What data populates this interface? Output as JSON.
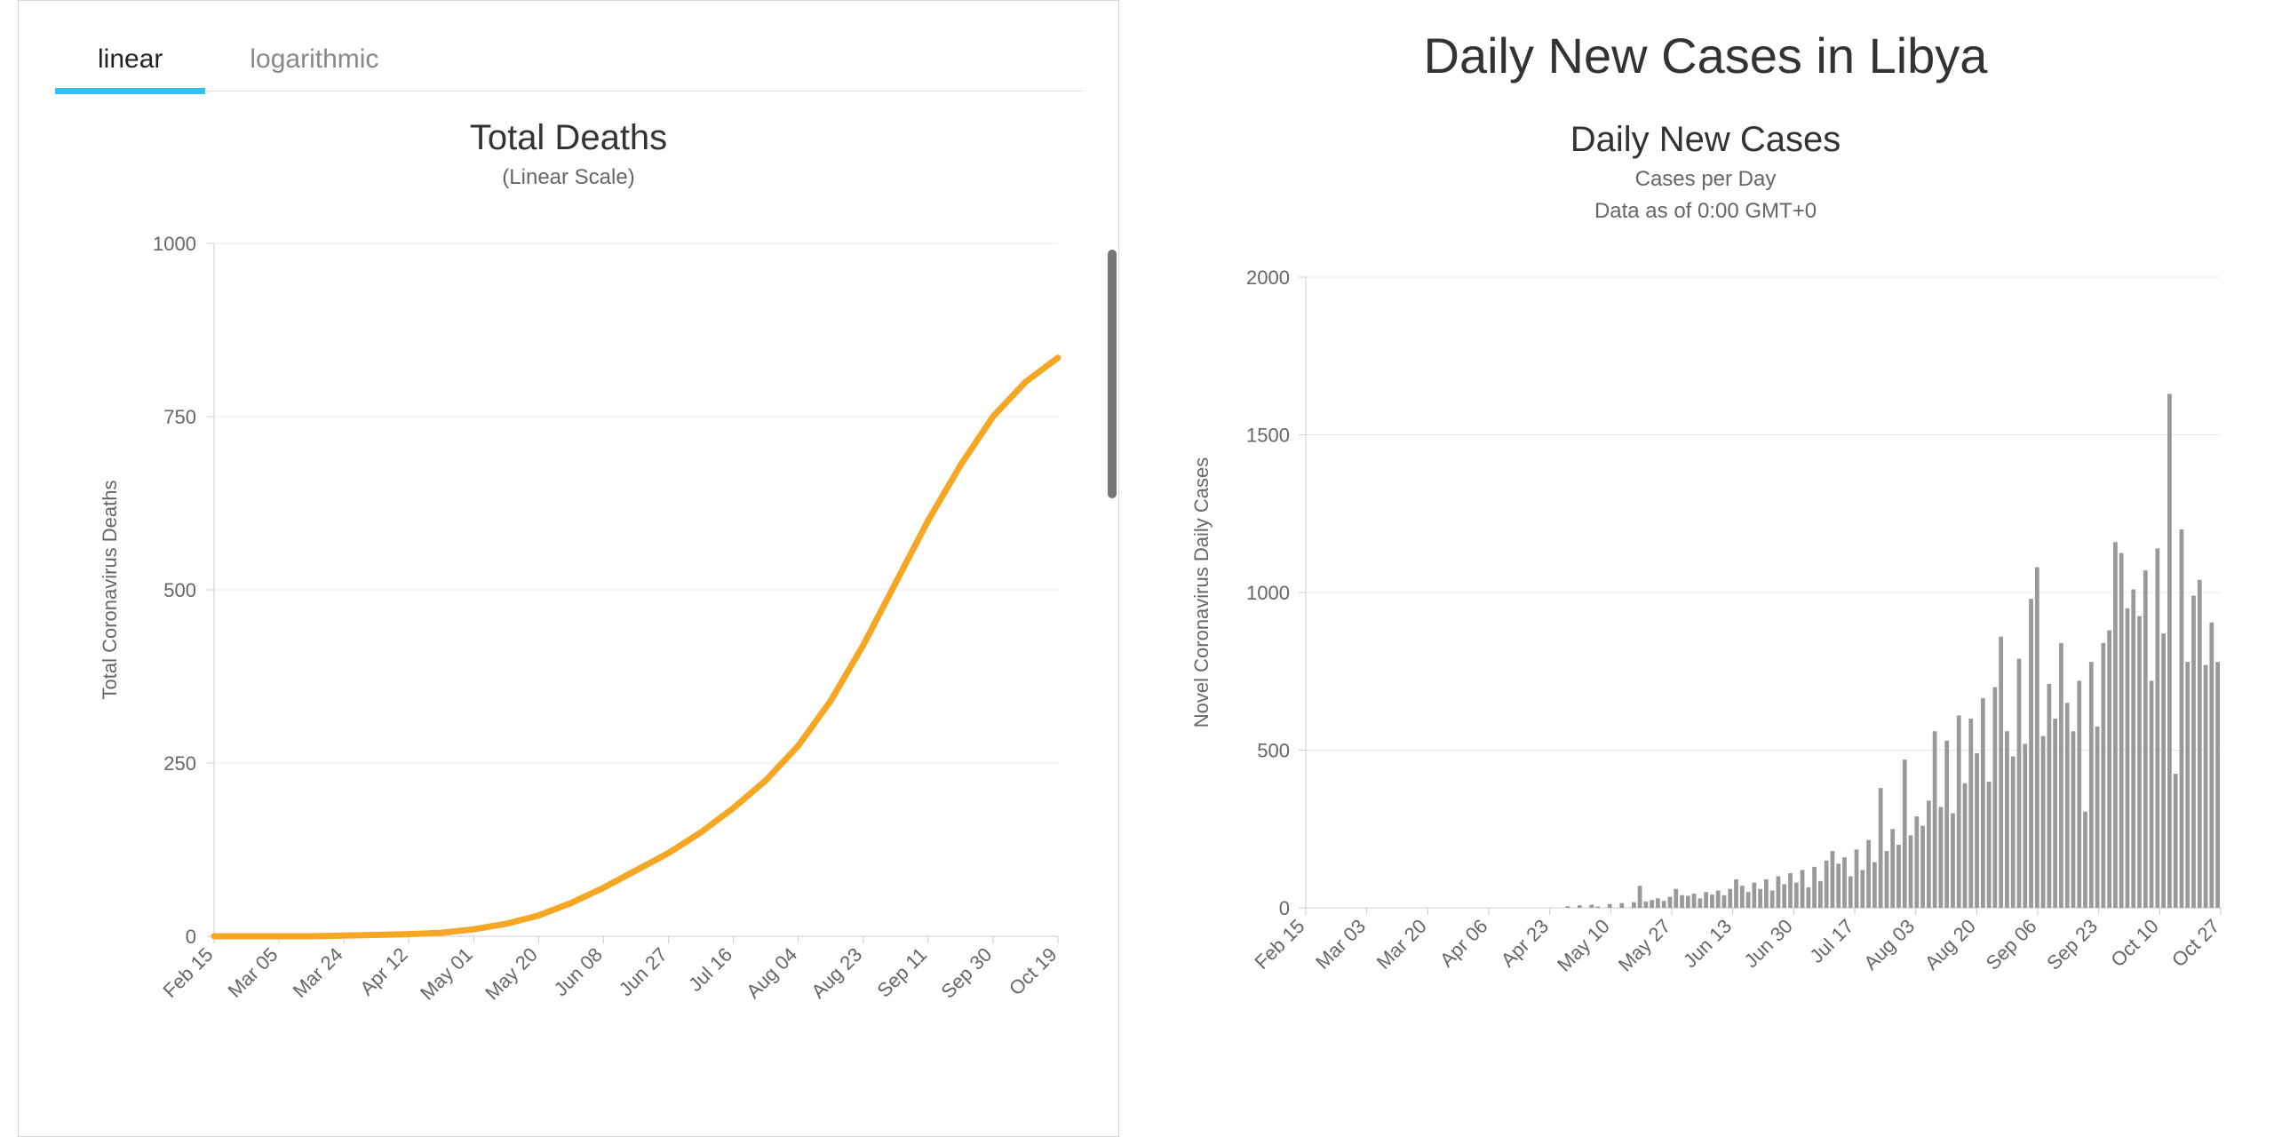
{
  "left": {
    "tabs": [
      {
        "label": "linear",
        "active": true
      },
      {
        "label": "logarithmic",
        "active": false
      }
    ],
    "tab_active_underline_color": "#33c1f3",
    "chart": {
      "type": "line",
      "title": "Total Deaths",
      "title_fontsize": 40,
      "subtitle": "(Linear Scale)",
      "subtitle_fontsize": 24,
      "ylabel": "Total Coronavirus Deaths",
      "ylabel_fontsize": 22,
      "line_color": "#f5a623",
      "line_width": 7,
      "background_color": "#ffffff",
      "grid_color": "#e8e8e8",
      "axis_color": "#cccccc",
      "ylim": [
        0,
        1000
      ],
      "yticks": [
        0,
        250,
        500,
        750,
        1000
      ],
      "x_categories": [
        "Feb 15",
        "Mar 05",
        "Mar 24",
        "Apr 12",
        "May 01",
        "May 20",
        "Jun 08",
        "Jun 27",
        "Jul 16",
        "Aug 04",
        "Aug 23",
        "Sep 11",
        "Sep 30",
        "Oct 19"
      ],
      "values": [
        0,
        0,
        0,
        0,
        1,
        2,
        3,
        5,
        10,
        18,
        30,
        48,
        70,
        95,
        120,
        150,
        185,
        225,
        275,
        340,
        420,
        510,
        600,
        680,
        750,
        800,
        835
      ]
    }
  },
  "right": {
    "page_title": "Daily New Cases in Libya",
    "page_title_fontsize": 56,
    "chart": {
      "type": "bar",
      "title": "Daily New Cases",
      "title_fontsize": 40,
      "subtitle1": "Cases per Day",
      "subtitle2": "Data as of 0:00 GMT+0",
      "subtitle_fontsize": 24,
      "ylabel": "Novel Coronavirus Daily Cases",
      "ylabel_fontsize": 22,
      "bar_color": "#999999",
      "background_color": "#ffffff",
      "grid_color": "#e8e8e8",
      "axis_color": "#cccccc",
      "ylim": [
        0,
        2000
      ],
      "yticks": [
        0,
        500,
        1000,
        1500,
        2000
      ],
      "x_categories": [
        "Feb 15",
        "Mar 03",
        "Mar 20",
        "Apr 06",
        "Apr 23",
        "May 10",
        "May 27",
        "Jun 13",
        "Jun 30",
        "Jul 17",
        "Aug 03",
        "Aug 20",
        "Sep 06",
        "Sep 23",
        "Oct 10",
        "Oct 27"
      ],
      "values": [
        0,
        0,
        0,
        0,
        0,
        0,
        0,
        0,
        0,
        0,
        0,
        0,
        0,
        0,
        0,
        0,
        0,
        0,
        0,
        0,
        0,
        0,
        0,
        0,
        0,
        0,
        0,
        0,
        0,
        0,
        0,
        0,
        0,
        0,
        0,
        0,
        0,
        0,
        0,
        0,
        0,
        0,
        0,
        5,
        0,
        8,
        0,
        10,
        4,
        0,
        12,
        0,
        15,
        0,
        18,
        70,
        20,
        25,
        30,
        22,
        35,
        60,
        40,
        38,
        45,
        30,
        50,
        42,
        55,
        40,
        60,
        90,
        70,
        50,
        80,
        60,
        90,
        55,
        100,
        75,
        110,
        80,
        120,
        65,
        130,
        85,
        150,
        180,
        140,
        160,
        100,
        185,
        120,
        215,
        145,
        380,
        180,
        250,
        200,
        470,
        230,
        290,
        260,
        340,
        560,
        320,
        530,
        300,
        610,
        395,
        600,
        490,
        665,
        400,
        700,
        860,
        560,
        480,
        790,
        520,
        980,
        1080,
        545,
        710,
        600,
        840,
        650,
        560,
        720,
        305,
        780,
        575,
        840,
        880,
        1160,
        1125,
        950,
        1010,
        925,
        1070,
        720,
        1140,
        870,
        1630,
        425,
        1200,
        780,
        990,
        1040,
        770,
        905,
        780
      ]
    }
  },
  "colors": {
    "text_dark": "#333333",
    "text_muted": "#666666",
    "border": "#d8d8d8"
  }
}
